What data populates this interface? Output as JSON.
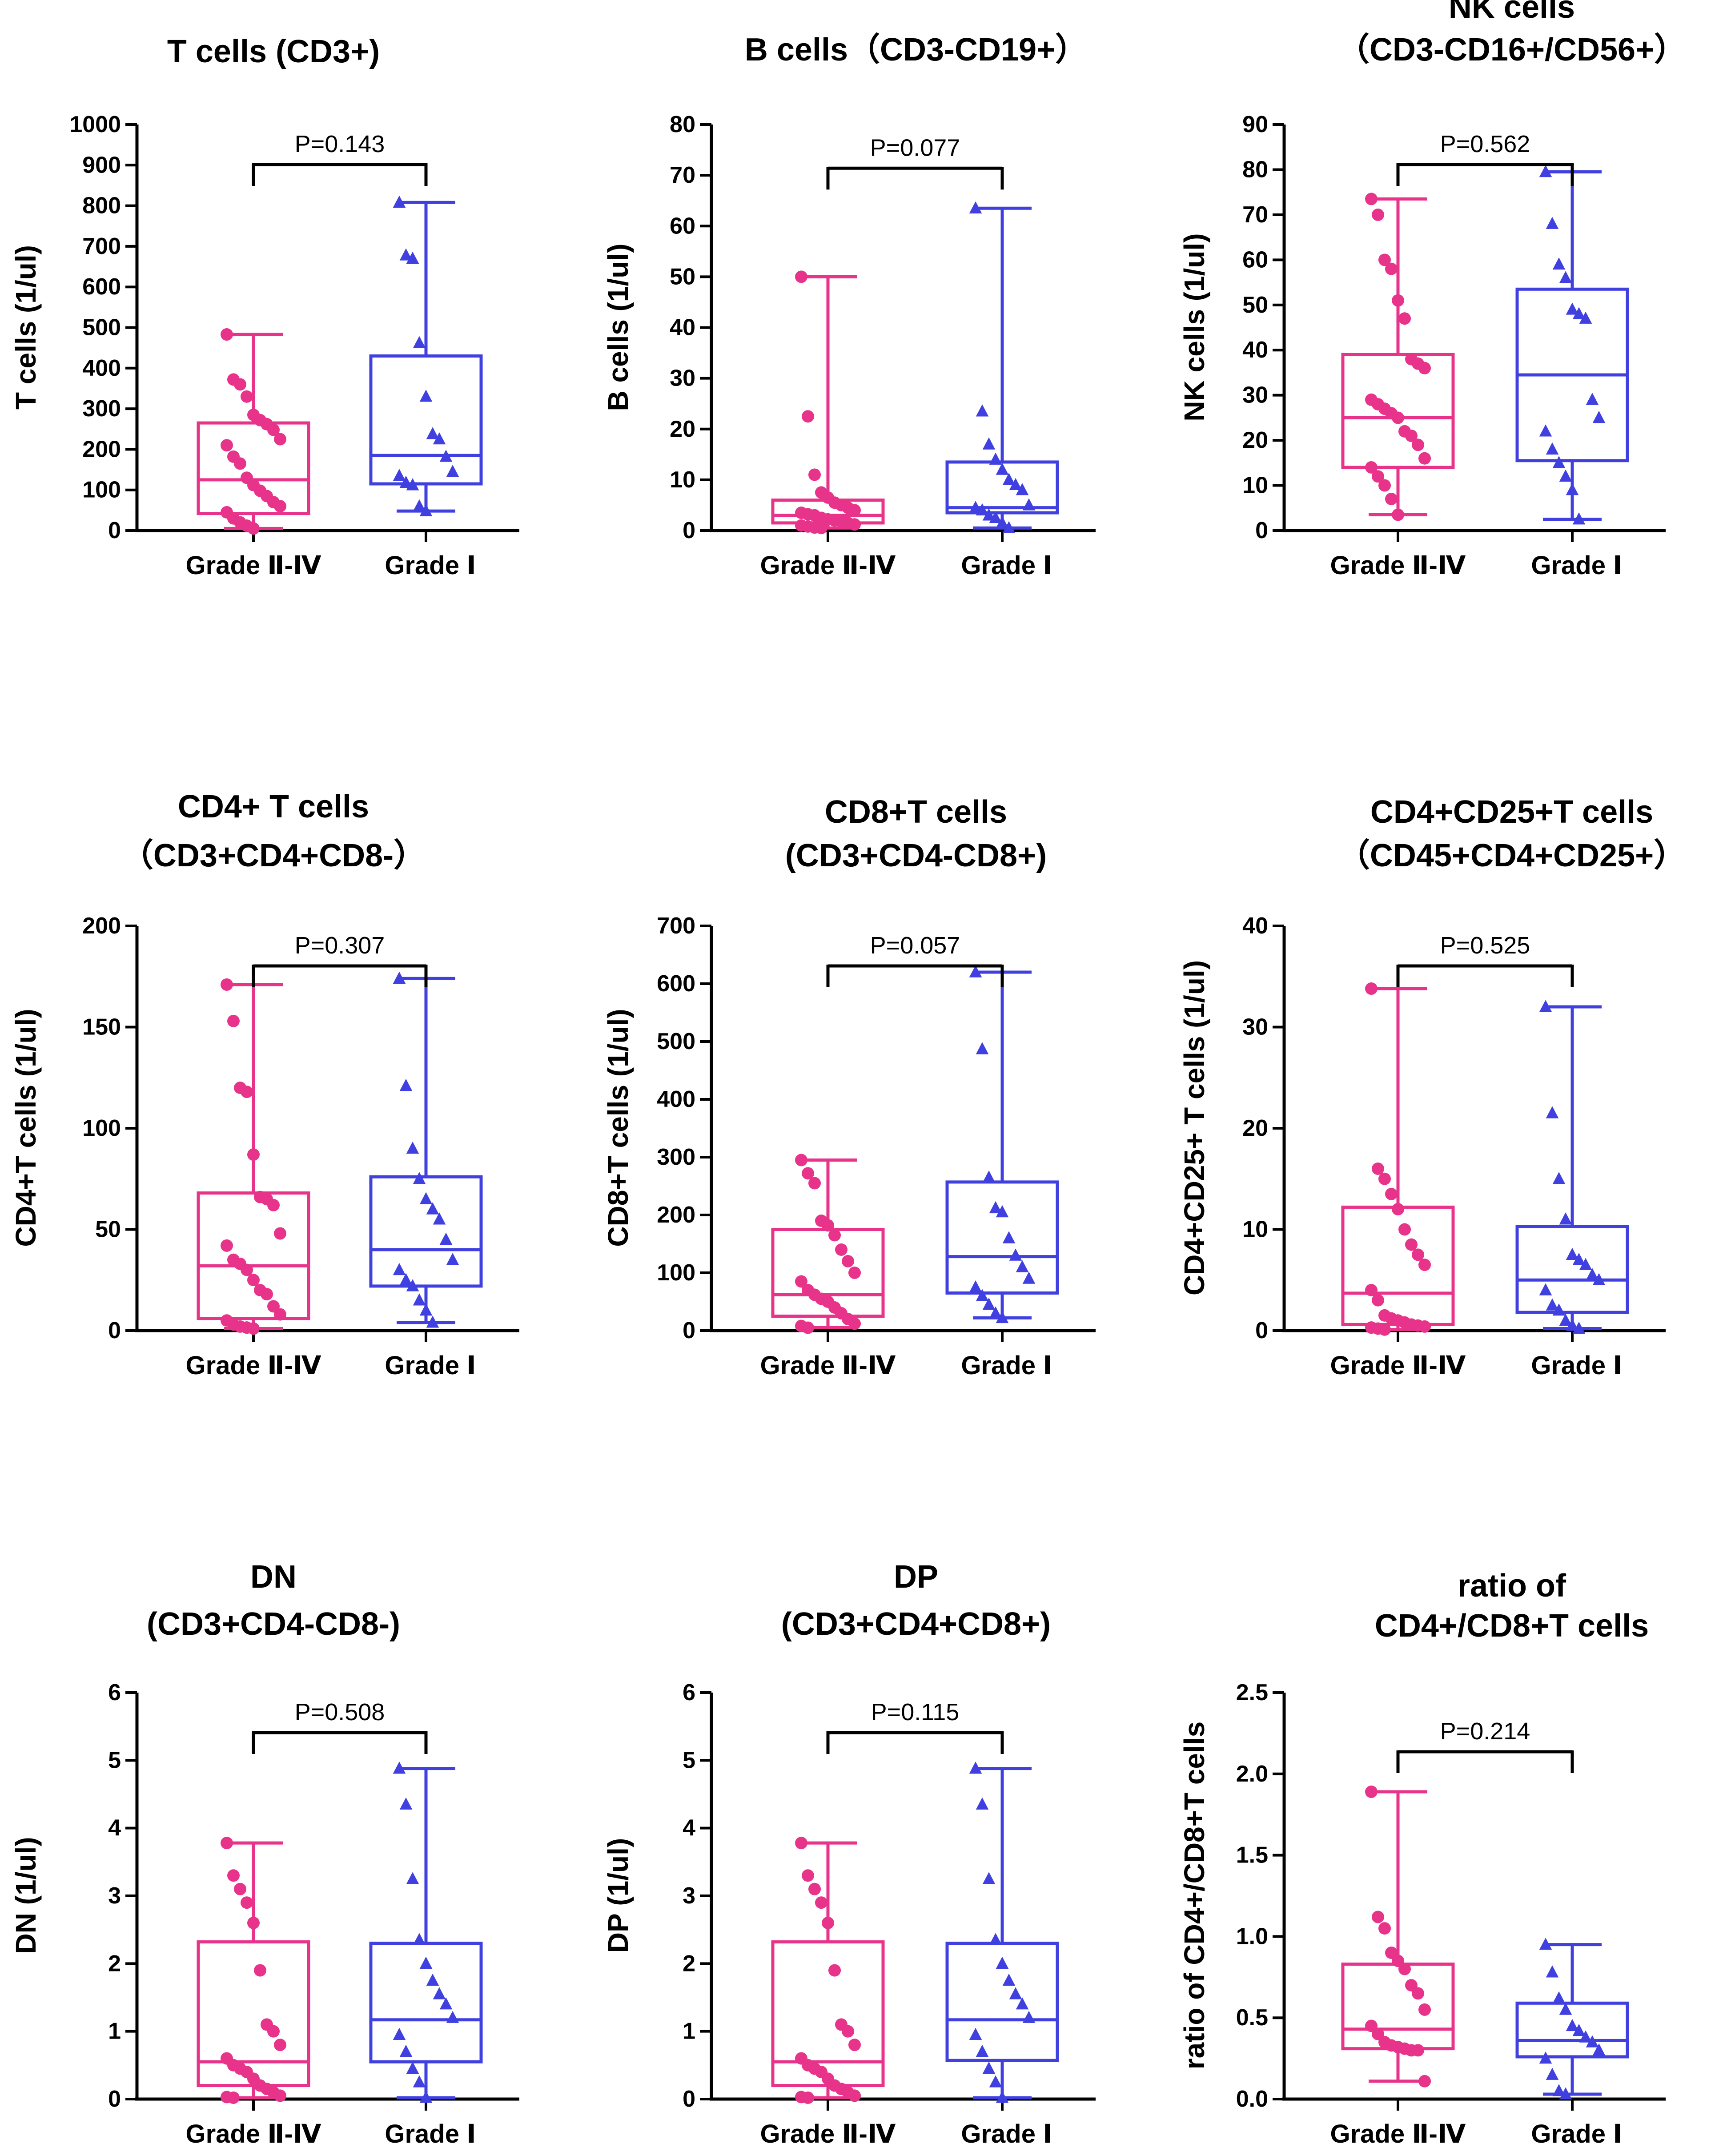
{
  "figure": {
    "colors": {
      "grade2to4": "#e8338a",
      "grade1": "#4040e0",
      "axis": "#000000"
    },
    "marker_shapes": {
      "grade2to4": "circle",
      "grade1": "triangle"
    }
  },
  "chart_data": [
    {
      "type": "box",
      "title": [
        "T cells (CD3+)"
      ],
      "ylabel": "T cells (1/ul)",
      "ylim": [
        0,
        1000
      ],
      "yticks": [
        0,
        100,
        200,
        300,
        400,
        500,
        600,
        700,
        800,
        900,
        1000
      ],
      "categories": [
        "Grade Ⅱ-Ⅳ",
        "Grade Ⅰ"
      ],
      "pvalue": "P=0.143",
      "series": [
        {
          "name": "Grade Ⅱ-Ⅳ",
          "min": 5,
          "q1": 42,
          "median": 125,
          "q3": 265,
          "max": 483,
          "points": [
            483,
            372,
            360,
            330,
            285,
            272,
            262,
            248,
            225,
            210,
            182,
            165,
            130,
            112,
            98,
            85,
            70,
            60,
            45,
            30,
            20,
            12,
            5
          ]
        },
        {
          "name": "Grade Ⅰ",
          "min": 48,
          "q1": 115,
          "median": 185,
          "q3": 430,
          "max": 808,
          "points": [
            808,
            678,
            670,
            462,
            330,
            238,
            225,
            182,
            145,
            135,
            118,
            112,
            60,
            48
          ]
        }
      ]
    },
    {
      "type": "box",
      "title": [
        "B cells（CD3-CD19+）"
      ],
      "ylabel": "B cells (1/ul)",
      "ylim": [
        0,
        80
      ],
      "yticks": [
        0,
        10,
        20,
        30,
        40,
        50,
        60,
        70,
        80
      ],
      "categories": [
        "Grade Ⅱ-Ⅳ",
        "Grade Ⅰ"
      ],
      "pvalue": "P=0.077",
      "series": [
        {
          "name": "Grade Ⅱ-Ⅳ",
          "min": 0.5,
          "q1": 1.5,
          "median": 3,
          "q3": 6,
          "max": 50,
          "points": [
            50,
            22.5,
            11,
            7.5,
            6.5,
            5.5,
            5,
            4.5,
            4,
            3.5,
            3.2,
            3,
            2.5,
            2.2,
            2,
            1.8,
            1.5,
            1.2,
            1,
            0.8,
            0.6,
            0.5
          ]
        },
        {
          "name": "Grade Ⅰ",
          "min": 0.5,
          "q1": 3.5,
          "median": 4.5,
          "q3": 13.5,
          "max": 63.5,
          "points": [
            63.5,
            23.5,
            17,
            14,
            12,
            10,
            9,
            8,
            5,
            4.5,
            4,
            3,
            2.5,
            1.5,
            0.5
          ]
        }
      ]
    },
    {
      "type": "box",
      "title": [
        "NK cells",
        "（CD3-CD16+/CD56+）"
      ],
      "ylabel": "NK cells (1/ul)",
      "ylim": [
        0,
        90
      ],
      "yticks": [
        0,
        10,
        20,
        30,
        40,
        50,
        60,
        70,
        80,
        90
      ],
      "categories": [
        "Grade Ⅱ-Ⅳ",
        "Grade Ⅰ"
      ],
      "pvalue": "P=0.562",
      "series": [
        {
          "name": "Grade Ⅱ-Ⅳ",
          "min": 3.5,
          "q1": 14,
          "median": 25,
          "q3": 39,
          "max": 73.5,
          "points": [
            73.5,
            70,
            60,
            58,
            51,
            47,
            38,
            37,
            36,
            29,
            28,
            27,
            26,
            25,
            22,
            21,
            19,
            16,
            14,
            12,
            10,
            7,
            3.5
          ]
        },
        {
          "name": "Grade Ⅰ",
          "min": 2.5,
          "q1": 15.5,
          "median": 34.5,
          "q3": 53.5,
          "max": 79.5,
          "points": [
            79.5,
            68,
            59,
            56,
            49,
            48,
            47,
            29,
            25,
            22,
            18,
            15,
            12,
            9,
            2.5
          ]
        }
      ]
    },
    {
      "type": "box",
      "title": [
        "CD4+ T cells",
        "（CD3+CD4+CD8-）"
      ],
      "ylabel": "CD4+T cells (1/ul)",
      "ylim": [
        0,
        200
      ],
      "yticks": [
        0,
        50,
        100,
        150,
        200
      ],
      "categories": [
        "Grade Ⅱ-Ⅳ",
        "Grade Ⅰ"
      ],
      "pvalue": "P=0.307",
      "series": [
        {
          "name": "Grade Ⅱ-Ⅳ",
          "min": 1,
          "q1": 6,
          "median": 32,
          "q3": 68,
          "max": 171,
          "points": [
            171,
            153,
            120,
            118,
            87,
            66,
            65,
            62,
            48,
            42,
            35,
            33,
            30,
            25,
            20,
            18,
            12,
            8,
            5,
            3,
            2,
            1.5,
            1
          ]
        },
        {
          "name": "Grade Ⅰ",
          "min": 4,
          "q1": 22,
          "median": 40,
          "q3": 76,
          "max": 174,
          "points": [
            174,
            121,
            90,
            75,
            65,
            60,
            55,
            45,
            35,
            30,
            25,
            22,
            15,
            10,
            4
          ]
        }
      ]
    },
    {
      "type": "box",
      "title": [
        "CD8+T cells",
        "(CD3+CD4-CD8+)"
      ],
      "ylabel": "CD8+T cells (1/ul)",
      "ylim": [
        0,
        700
      ],
      "yticks": [
        0,
        100,
        200,
        300,
        400,
        500,
        600,
        700
      ],
      "categories": [
        "Grade Ⅱ-Ⅳ",
        "Grade Ⅰ"
      ],
      "pvalue": "P=0.057",
      "series": [
        {
          "name": "Grade Ⅱ-Ⅳ",
          "min": 5,
          "q1": 25,
          "median": 62,
          "q3": 175,
          "max": 295,
          "points": [
            295,
            272,
            255,
            190,
            182,
            165,
            140,
            120,
            100,
            85,
            70,
            62,
            55,
            50,
            40,
            30,
            20,
            12,
            8,
            5
          ]
        },
        {
          "name": "Grade Ⅰ",
          "min": 22,
          "q1": 65,
          "median": 128,
          "q3": 257,
          "max": 620,
          "points": [
            620,
            487,
            265,
            212,
            205,
            160,
            130,
            110,
            90,
            75,
            60,
            45,
            30,
            22
          ]
        }
      ]
    },
    {
      "type": "box",
      "title": [
        "CD4+CD25+T cells",
        "（CD45+CD4+CD25+）"
      ],
      "ylabel": "CD4+CD25+ T cells (1/ul)",
      "ylim": [
        0,
        40
      ],
      "yticks": [
        0,
        10,
        20,
        30,
        40
      ],
      "categories": [
        "Grade Ⅱ-Ⅳ",
        "Grade Ⅰ"
      ],
      "pvalue": "P=0.525",
      "series": [
        {
          "name": "Grade Ⅱ-Ⅳ",
          "min": 0.1,
          "q1": 0.6,
          "median": 3.7,
          "q3": 12.2,
          "max": 33.8,
          "points": [
            33.8,
            16,
            15,
            13.5,
            12,
            10,
            8.5,
            7.5,
            6.5,
            4,
            3,
            1.5,
            1.2,
            1,
            0.8,
            0.6,
            0.5,
            0.4,
            0.3,
            0.2,
            0.1
          ]
        },
        {
          "name": "Grade Ⅰ",
          "min": 0.2,
          "q1": 1.8,
          "median": 5,
          "q3": 10.3,
          "max": 32,
          "points": [
            32,
            21.5,
            15,
            11,
            7.5,
            7,
            6.5,
            5.5,
            5,
            4,
            2.5,
            2,
            1,
            0.5,
            0.2
          ]
        }
      ]
    },
    {
      "type": "box",
      "title": [
        "DN",
        "(CD3+CD4-CD8-)"
      ],
      "ylabel": "DN (1/ul)",
      "ylim": [
        0,
        6
      ],
      "yticks": [
        0,
        1,
        2,
        3,
        4,
        5,
        6
      ],
      "categories": [
        "Grade Ⅱ-Ⅳ",
        "Grade Ⅰ"
      ],
      "pvalue": "P=0.508",
      "series": [
        {
          "name": "Grade Ⅱ-Ⅳ",
          "min": 0.02,
          "q1": 0.2,
          "median": 0.55,
          "q3": 2.32,
          "max": 3.78,
          "points": [
            3.78,
            3.3,
            3.1,
            2.9,
            2.6,
            1.9,
            1.1,
            1.0,
            0.8,
            0.6,
            0.5,
            0.45,
            0.4,
            0.3,
            0.2,
            0.15,
            0.1,
            0.05,
            0.03,
            0.02
          ]
        },
        {
          "name": "Grade Ⅰ",
          "min": 0.02,
          "q1": 0.55,
          "median": 1.17,
          "q3": 2.3,
          "max": 4.88,
          "points": [
            4.88,
            4.35,
            3.25,
            2.35,
            2.0,
            1.75,
            1.55,
            1.4,
            1.2,
            0.95,
            0.7,
            0.45,
            0.25,
            0.02
          ]
        }
      ]
    },
    {
      "type": "box",
      "title": [
        "DP",
        "(CD3+CD4+CD8+)"
      ],
      "ylabel": "DP (1/ul)",
      "ylim": [
        0,
        6
      ],
      "yticks": [
        0,
        1,
        2,
        3,
        4,
        5,
        6
      ],
      "categories": [
        "Grade Ⅱ-Ⅳ",
        "Grade Ⅰ"
      ],
      "pvalue": "P=0.115",
      "series": [
        {
          "name": "Grade Ⅱ-Ⅳ",
          "min": 0.02,
          "q1": 0.2,
          "median": 0.55,
          "q3": 2.32,
          "max": 3.78,
          "points": [
            3.78,
            3.3,
            3.1,
            2.9,
            2.6,
            1.9,
            1.1,
            1.0,
            0.8,
            0.6,
            0.5,
            0.45,
            0.4,
            0.3,
            0.2,
            0.15,
            0.1,
            0.05,
            0.03,
            0.02
          ]
        },
        {
          "name": "Grade Ⅰ",
          "min": 0.02,
          "q1": 0.57,
          "median": 1.17,
          "q3": 2.3,
          "max": 4.88,
          "points": [
            4.88,
            4.35,
            3.25,
            2.35,
            2.0,
            1.75,
            1.55,
            1.4,
            1.2,
            0.95,
            0.7,
            0.45,
            0.25,
            0.02
          ]
        }
      ]
    },
    {
      "type": "box",
      "title": [
        "ratio of",
        "CD4+/CD8+T cells"
      ],
      "ylabel": "ratio of CD4+/CD8+T cells",
      "ylim": [
        0,
        2.5
      ],
      "yticks": [
        0.0,
        0.5,
        1.0,
        1.5,
        2.0,
        2.5
      ],
      "tick_decimals": 1,
      "categories": [
        "Grade Ⅱ-Ⅳ",
        "Grade Ⅰ"
      ],
      "pvalue": "P=0.214",
      "series": [
        {
          "name": "Grade Ⅱ-Ⅳ",
          "min": 0.11,
          "q1": 0.31,
          "median": 0.43,
          "q3": 0.83,
          "max": 1.89,
          "points": [
            1.89,
            1.12,
            1.05,
            0.9,
            0.85,
            0.8,
            0.7,
            0.65,
            0.55,
            0.45,
            0.4,
            0.35,
            0.33,
            0.32,
            0.31,
            0.3,
            0.3,
            0.11
          ]
        },
        {
          "name": "Grade Ⅰ",
          "min": 0.03,
          "q1": 0.26,
          "median": 0.36,
          "q3": 0.59,
          "max": 0.95,
          "points": [
            0.95,
            0.78,
            0.62,
            0.55,
            0.45,
            0.42,
            0.38,
            0.35,
            0.3,
            0.25,
            0.15,
            0.05,
            0.03
          ]
        }
      ]
    }
  ]
}
